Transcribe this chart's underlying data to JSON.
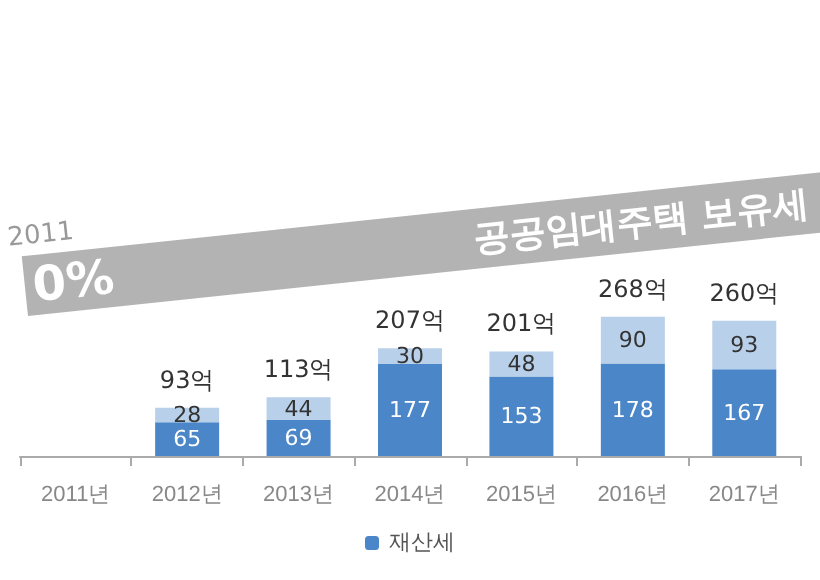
{
  "chart_data": {
    "type": "bar",
    "title": "공공임대주택 보유세",
    "annotations": [
      "2011",
      "0%"
    ],
    "categories": [
      "2011년",
      "2012년",
      "2013년",
      "2014년",
      "2015년",
      "2016년",
      "2017년"
    ],
    "stacked": true,
    "series": [
      {
        "name": "재산세",
        "color": "#4a86c8",
        "values": [
          null,
          65,
          69,
          177,
          153,
          178,
          167
        ]
      },
      {
        "color": "#b8d0ea",
        "values": [
          null,
          28,
          44,
          30,
          48,
          90,
          93
        ]
      }
    ],
    "totals": [
      null,
      "93억",
      "113억",
      "207억",
      "201억",
      "268억",
      "260억"
    ],
    "data_labels": true,
    "legend": "bottom"
  }
}
